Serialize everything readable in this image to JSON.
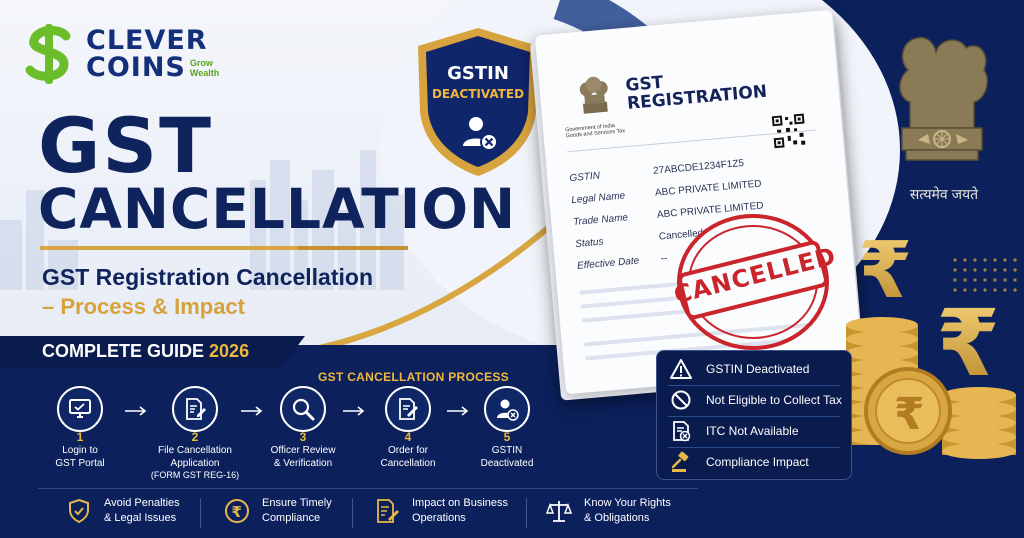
{
  "brand": {
    "name_line1": "CLEVER",
    "name_line2": "COINS",
    "tagline": "Grow Wealth"
  },
  "hero": {
    "title_line1": "GST",
    "title_line2": "CANCELLATION",
    "subtitle_line1": "GST Registration Cancellation",
    "subtitle_line2": "– Process & Impact",
    "guide_label": "COMPLETE GUIDE",
    "guide_year": "2026"
  },
  "badge": {
    "line1": "GSTIN",
    "line2": "DEACTIVATED"
  },
  "document": {
    "gov_line1": "Government of India",
    "gov_line2": "Goods and Services Tax",
    "title_line1": "GST",
    "title_line2": "REGISTRATION",
    "fields": [
      {
        "label": "GSTIN",
        "value": "27ABCDE1234F1Z5"
      },
      {
        "label": "Legal Name",
        "value": "ABC PRIVATE LIMITED"
      },
      {
        "label": "Trade Name",
        "value": "ABC PRIVATE LIMITED"
      },
      {
        "label": "Status",
        "value": "Cancelled"
      },
      {
        "label": "Effective Date",
        "value": "--"
      }
    ],
    "stamp": "CANCELLED"
  },
  "emblem": {
    "motto": "सत्यमेव जयते"
  },
  "process": {
    "title": "GST CANCELLATION PROCESS",
    "steps": [
      {
        "num": "1",
        "label": "Login to GST Portal",
        "icon": "monitor-icon"
      },
      {
        "num": "2",
        "label": "File Cancellation Application (FORM GST REG-16)",
        "icon": "document-edit-icon"
      },
      {
        "num": "3",
        "label": "Officer Review & Verification",
        "icon": "magnifier-icon"
      },
      {
        "num": "4",
        "label": "Order for Cancellation",
        "icon": "order-document-icon"
      },
      {
        "num": "5",
        "label": "GSTIN Deactivated",
        "icon": "user-cancel-icon"
      }
    ],
    "step_labels": {
      "s1a": "Login to",
      "s1b": "GST Portal",
      "s2a": "File Cancellation",
      "s2b": "Application",
      "s2c": "(FORM GST REG-16)",
      "s3a": "Officer Review",
      "s3b": "& Verification",
      "s4a": "Order for",
      "s4b": "Cancellation",
      "s5a": "GSTIN",
      "s5b": "Deactivated"
    }
  },
  "impacts": [
    {
      "label": "GSTIN Deactivated",
      "icon": "warning-icon"
    },
    {
      "label": "Not Eligible to Collect Tax",
      "icon": "prohibited-icon"
    },
    {
      "label": "ITC Not Available",
      "icon": "document-cancel-icon"
    },
    {
      "label": "Compliance Impact",
      "icon": "gavel-icon"
    }
  ],
  "benefits": [
    {
      "line1": "Avoid Penalties",
      "line2": "& Legal Issues",
      "icon": "shield-check-icon"
    },
    {
      "line1": "Ensure Timely",
      "line2": "Compliance",
      "icon": "rupee-circle-icon"
    },
    {
      "line1": "Impact on Business",
      "line2": "Operations",
      "icon": "document-pen-icon"
    },
    {
      "line1": "Know Your Rights",
      "line2": "& Obligations",
      "icon": "scales-icon"
    }
  ],
  "colors": {
    "navy": "#0c215c",
    "gold": "#d6a23b",
    "green": "#5aa51d",
    "stamp_red": "#c9252b"
  }
}
